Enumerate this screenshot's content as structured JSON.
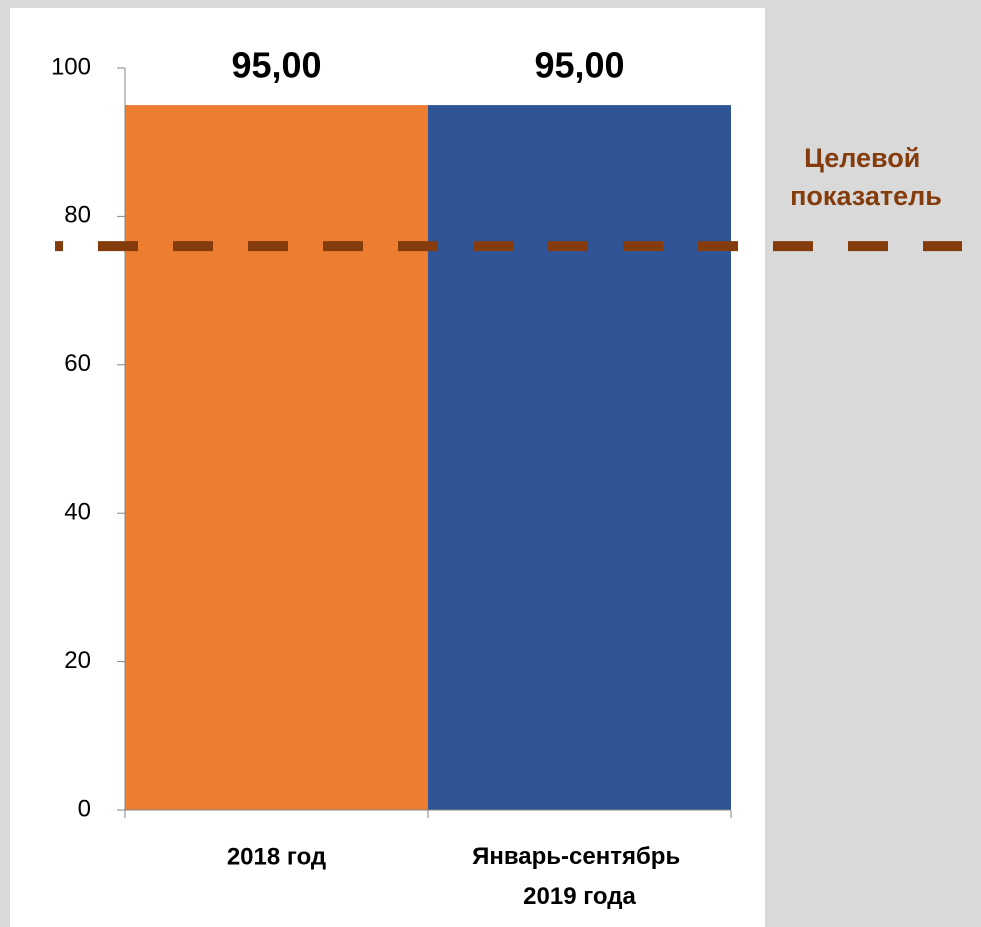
{
  "chart_data": {
    "type": "bar",
    "categories": [
      "2018 год",
      "Январь-сентябрь 2019 года"
    ],
    "values": [
      95,
      95
    ],
    "value_labels": [
      "95,00",
      "95,00"
    ],
    "colors": [
      "#ed7d31",
      "#2f5597"
    ],
    "ylim": [
      0,
      100
    ],
    "yticks": [
      0,
      20,
      40,
      60,
      80,
      100
    ],
    "target": {
      "value": 76,
      "label": "Целевой показатель",
      "color": "#843c0c"
    }
  }
}
